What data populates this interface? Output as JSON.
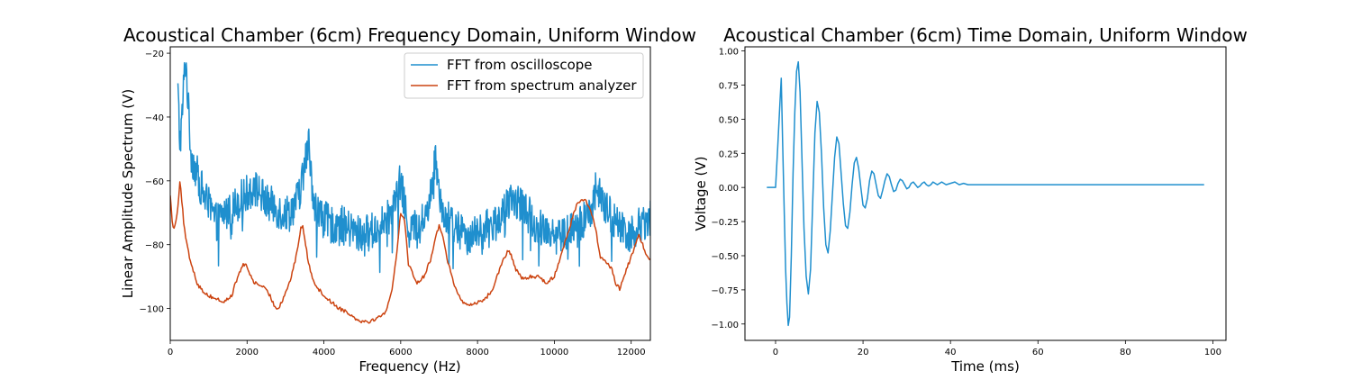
{
  "chart_data": [
    {
      "type": "line",
      "title": "Acoustical Chamber (6cm) Frequency Domain, Uniform Window",
      "xlabel": "Frequency (Hz)",
      "ylabel": "Linear Amplitude Spectrum (V)",
      "xlim": [
        0,
        12500
      ],
      "ylim": [
        -110,
        -18
      ],
      "xticks": [
        0,
        2000,
        4000,
        6000,
        8000,
        10000,
        12000
      ],
      "yticks": [
        -100,
        -80,
        -60,
        -40,
        -20
      ],
      "xtick_labels": [
        "0",
        "2000",
        "4000",
        "6000",
        "8000",
        "10000",
        "12000"
      ],
      "ytick_labels": [
        "−100",
        "−80",
        "−60",
        "−40",
        "−20"
      ],
      "grid": false,
      "legend_placement": "top-right",
      "series": [
        {
          "name": "FFT from oscilloscope",
          "color": "#1f8fce",
          "noise": 6,
          "x": [
            200,
            250,
            300,
            350,
            400,
            450,
            500,
            550,
            600,
            700,
            800,
            900,
            1000,
            1200,
            1400,
            1600,
            1800,
            2000,
            2100,
            2300,
            2500,
            2700,
            2900,
            3100,
            3300,
            3400,
            3500,
            3600,
            3650,
            3700,
            3800,
            3900,
            4000,
            4200,
            4400,
            4600,
            4800,
            5000,
            5200,
            5400,
            5600,
            5800,
            6000,
            6100,
            6200,
            6400,
            6600,
            6800,
            6900,
            7000,
            7100,
            7200,
            7400,
            7600,
            7800,
            8000,
            8200,
            8400,
            8600,
            8800,
            9000,
            9200,
            9400,
            9600,
            9800,
            10000,
            10200,
            10400,
            10600,
            10800,
            11000,
            11100,
            11200,
            11400,
            11600,
            11800,
            11900,
            12000,
            12200,
            12400,
            12500
          ],
          "y": [
            -32,
            -48,
            -42,
            -30,
            -21,
            -32,
            -44,
            -52,
            -54,
            -58,
            -62,
            -65,
            -68,
            -73,
            -70,
            -69,
            -66,
            -64,
            -62,
            -63,
            -67,
            -68,
            -70,
            -70,
            -66,
            -62,
            -55,
            -48,
            -54,
            -62,
            -69,
            -71,
            -72,
            -74,
            -73,
            -75,
            -76,
            -77,
            -76,
            -75,
            -73,
            -69,
            -60,
            -68,
            -74,
            -75,
            -72,
            -64,
            -52,
            -62,
            -69,
            -72,
            -74,
            -76,
            -77,
            -77,
            -75,
            -74,
            -71,
            -68,
            -66,
            -68,
            -72,
            -74,
            -75,
            -76,
            -77,
            -76,
            -75,
            -72,
            -67,
            -61,
            -66,
            -70,
            -73,
            -75,
            -77,
            -76,
            -74,
            -72,
            -71
          ]
        },
        {
          "name": "FFT from spectrum analyzer",
          "color": "#cc4411",
          "noise": 0.6,
          "x": [
            0,
            50,
            100,
            150,
            200,
            250,
            300,
            350,
            400,
            500,
            600,
            700,
            800,
            900,
            1000,
            1200,
            1400,
            1600,
            1700,
            1800,
            1900,
            2000,
            2100,
            2200,
            2400,
            2600,
            2700,
            2800,
            2900,
            3000,
            3100,
            3200,
            3300,
            3400,
            3450,
            3500,
            3600,
            3700,
            3800,
            4000,
            4200,
            4400,
            4600,
            4800,
            5000,
            5200,
            5400,
            5600,
            5700,
            5800,
            5900,
            6000,
            6100,
            6200,
            6400,
            6600,
            6800,
            6900,
            7000,
            7100,
            7200,
            7400,
            7600,
            7800,
            8000,
            8200,
            8400,
            8500,
            8600,
            8700,
            8800,
            8900,
            9000,
            9200,
            9400,
            9600,
            9800,
            10000,
            10200,
            10400,
            10500,
            10600,
            10700,
            10800,
            10900,
            11000,
            11100,
            11200,
            11400,
            11500,
            11600,
            11700,
            11800,
            12000,
            12200,
            12400,
            12500
          ],
          "y": [
            -64,
            -73,
            -75,
            -72,
            -68,
            -60,
            -66,
            -73,
            -78,
            -84,
            -88,
            -92,
            -94,
            -95,
            -96,
            -97,
            -98,
            -96,
            -92,
            -89,
            -86,
            -87,
            -90,
            -92,
            -93,
            -96,
            -99,
            -100,
            -98,
            -95,
            -92,
            -88,
            -82,
            -75,
            -74,
            -78,
            -86,
            -90,
            -93,
            -96,
            -98,
            -100,
            -101,
            -103,
            -104,
            -104,
            -103,
            -101,
            -98,
            -92,
            -82,
            -70,
            -72,
            -86,
            -92,
            -90,
            -84,
            -78,
            -74,
            -77,
            -84,
            -93,
            -98,
            -99,
            -98,
            -97,
            -94,
            -90,
            -87,
            -84,
            -82,
            -84,
            -88,
            -91,
            -90,
            -90,
            -92,
            -90,
            -82,
            -75,
            -70,
            -67,
            -66,
            -66,
            -68,
            -71,
            -77,
            -84,
            -86,
            -88,
            -92,
            -94,
            -90,
            -84,
            -77,
            -83,
            -85
          ]
        }
      ]
    },
    {
      "type": "line",
      "title": "Acoustical Chamber (6cm) Time Domain, Uniform Window",
      "xlabel": "Time (ms)",
      "ylabel": "Voltage (V)",
      "xlim": [
        -7,
        103
      ],
      "ylim": [
        -1.12,
        1.03
      ],
      "xticks": [
        0,
        20,
        40,
        60,
        80,
        100
      ],
      "yticks": [
        -1.0,
        -0.75,
        -0.5,
        -0.25,
        0.0,
        0.25,
        0.5,
        0.75,
        1.0
      ],
      "xtick_labels": [
        "0",
        "20",
        "40",
        "60",
        "80",
        "100"
      ],
      "ytick_labels": [
        "−1.00",
        "−0.75",
        "−0.50",
        "−0.25",
        "0.00",
        "0.25",
        "0.50",
        "0.75",
        "1.00"
      ],
      "grid": false,
      "series": [
        {
          "color": "#1f8fce",
          "x": [
            -2,
            0,
            0.5,
            1.0,
            1.3,
            1.6,
            2.0,
            2.3,
            2.6,
            2.9,
            3.2,
            3.6,
            4.0,
            4.4,
            4.8,
            5.2,
            5.6,
            6.0,
            6.5,
            7.0,
            7.5,
            8.0,
            8.5,
            9.0,
            9.5,
            10.0,
            10.5,
            11.0,
            11.5,
            12.0,
            12.5,
            13.0,
            13.5,
            14.0,
            14.5,
            15.0,
            15.5,
            16.0,
            16.5,
            17.0,
            17.5,
            18.0,
            18.5,
            19.0,
            19.5,
            20.0,
            20.5,
            21.0,
            21.5,
            22.0,
            22.5,
            23.0,
            23.5,
            24.0,
            24.5,
            25.0,
            25.5,
            26.0,
            26.5,
            27.0,
            27.5,
            28.0,
            28.5,
            29.0,
            29.5,
            30.0,
            30.5,
            31.0,
            31.5,
            32.0,
            32.5,
            33.0,
            33.5,
            34.0,
            34.5,
            35.0,
            35.5,
            36.0,
            36.5,
            37.0,
            37.5,
            38.0,
            38.5,
            39.0,
            40.0,
            41.0,
            42.0,
            43.0,
            44.0,
            50.0,
            60.0,
            70.0,
            80.0,
            90.0,
            98.0
          ],
          "y": [
            0.0,
            0.0,
            0.3,
            0.62,
            0.8,
            0.35,
            -0.2,
            -0.6,
            -0.85,
            -1.01,
            -0.95,
            -0.5,
            0.1,
            0.55,
            0.85,
            0.92,
            0.7,
            0.25,
            -0.3,
            -0.65,
            -0.78,
            -0.6,
            -0.1,
            0.4,
            0.63,
            0.55,
            0.25,
            -0.15,
            -0.42,
            -0.48,
            -0.32,
            -0.05,
            0.22,
            0.37,
            0.32,
            0.1,
            -0.12,
            -0.28,
            -0.3,
            -0.18,
            0.02,
            0.18,
            0.22,
            0.14,
            0.0,
            -0.13,
            -0.15,
            -0.08,
            0.05,
            0.12,
            0.1,
            0.02,
            -0.06,
            -0.08,
            -0.02,
            0.05,
            0.1,
            0.08,
            0.02,
            -0.03,
            -0.02,
            0.03,
            0.06,
            0.05,
            0.02,
            -0.01,
            0.0,
            0.03,
            0.04,
            0.02,
            0.0,
            0.01,
            0.03,
            0.04,
            0.02,
            0.01,
            0.02,
            0.04,
            0.03,
            0.02,
            0.03,
            0.04,
            0.03,
            0.02,
            0.03,
            0.04,
            0.02,
            0.03,
            0.02,
            0.02,
            0.02,
            0.02,
            0.02,
            0.02,
            0.02
          ]
        }
      ]
    }
  ]
}
